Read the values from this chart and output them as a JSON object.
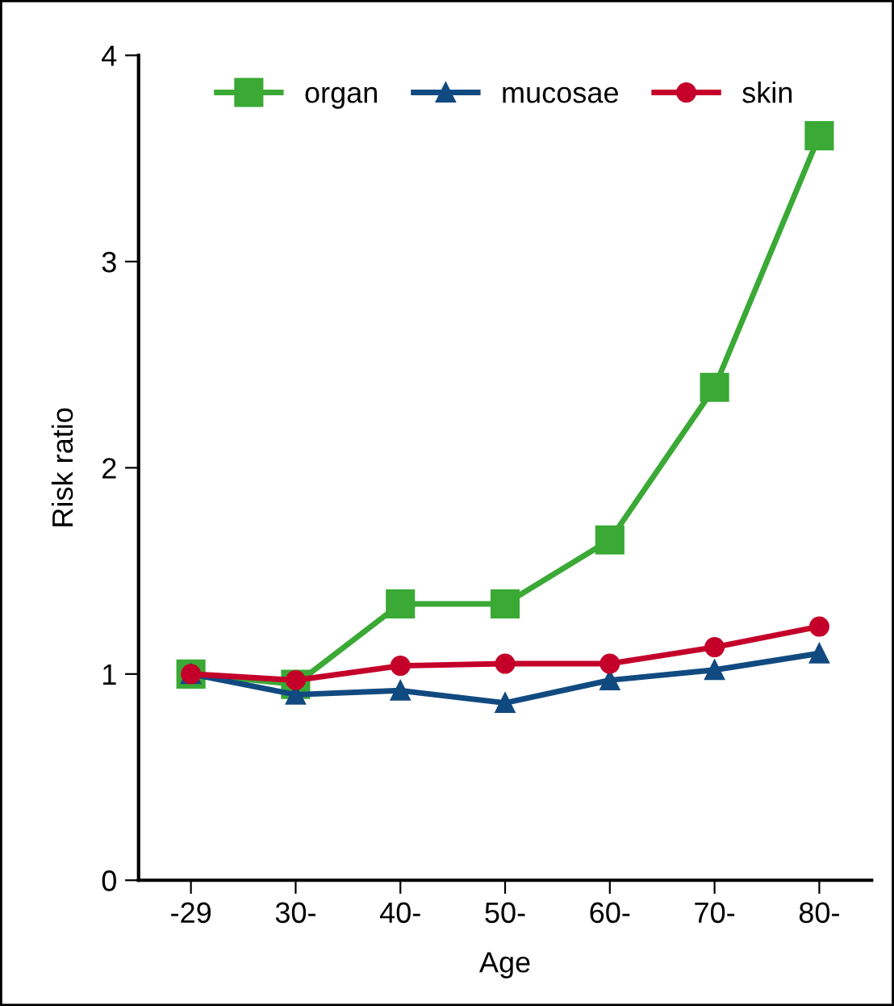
{
  "chart_data": {
    "type": "line",
    "xlabel": "Age",
    "ylabel": "Risk ratio",
    "categories": [
      "-29",
      "30-",
      "40-",
      "50-",
      "60-",
      "70-",
      "80-"
    ],
    "series": [
      {
        "name": "organ",
        "color": "#3aa935",
        "marker": "square",
        "values": [
          1.0,
          0.95,
          1.34,
          1.34,
          1.65,
          2.39,
          3.61
        ]
      },
      {
        "name": "mucosae",
        "color": "#114a80",
        "marker": "triangle",
        "values": [
          1.0,
          0.9,
          0.92,
          0.86,
          0.97,
          1.02,
          1.1
        ]
      },
      {
        "name": "skin",
        "color": "#c4002a",
        "marker": "circle",
        "values": [
          1.0,
          0.97,
          1.04,
          1.05,
          1.05,
          1.13,
          1.23
        ]
      }
    ],
    "ylim": [
      0,
      4
    ],
    "yticks": [
      0,
      1,
      2,
      3,
      4
    ],
    "grid": false,
    "legend": "top"
  }
}
